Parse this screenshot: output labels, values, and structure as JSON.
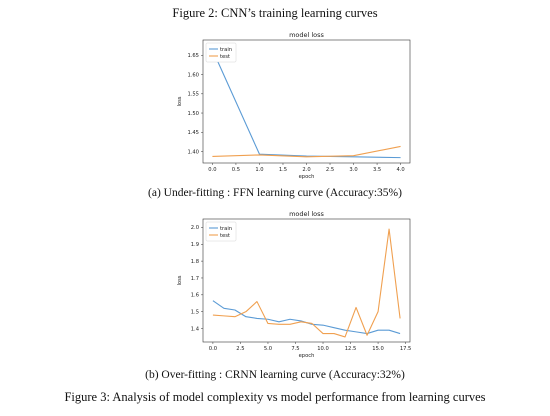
{
  "figure2_caption": "Figure 2: CNN’s training learning curves",
  "subfigure_a_caption": "(a) Under-fitting : FFN learning curve (Accuracy:35%)",
  "subfigure_b_caption": "(b) Over-fitting : CRNN learning curve (Accuracy:32%)",
  "figure3_caption": "Figure 3: Analysis of model complexity vs model performance from learning curves",
  "colors": {
    "train": "#5b9bd5",
    "test": "#f0a050"
  },
  "chart_data": [
    {
      "type": "line",
      "title": "model loss",
      "xlabel": "epoch",
      "ylabel": "loss",
      "xlim": [
        -0.2,
        4.2
      ],
      "ylim": [
        1.37,
        1.69
      ],
      "xticks": [
        "0.0",
        "0.5",
        "1.0",
        "1.5",
        "2.0",
        "2.5",
        "3.0",
        "3.5",
        "4.0"
      ],
      "yticks": [
        "1.40",
        "1.45",
        "1.50",
        "1.55",
        "1.60",
        "1.65"
      ],
      "legend_position": "top-left",
      "series": [
        {
          "name": "train",
          "x": [
            0,
            1,
            2,
            3,
            4
          ],
          "values": [
            1.665,
            1.393,
            1.388,
            1.386,
            1.384
          ]
        },
        {
          "name": "test",
          "x": [
            0,
            1,
            2,
            3,
            4
          ],
          "values": [
            1.387,
            1.391,
            1.386,
            1.389,
            1.413
          ]
        }
      ]
    },
    {
      "type": "line",
      "title": "model loss",
      "xlabel": "epoch",
      "ylabel": "loss",
      "xlim": [
        -0.9,
        17.9
      ],
      "ylim": [
        1.32,
        2.05
      ],
      "xticks": [
        "0.0",
        "2.5",
        "5.0",
        "7.5",
        "10.0",
        "12.5",
        "15.0",
        "17.5"
      ],
      "yticks": [
        "1.4",
        "1.5",
        "1.6",
        "1.7",
        "1.8",
        "1.9",
        "2.0"
      ],
      "legend_position": "top-left",
      "series": [
        {
          "name": "train",
          "x": [
            0,
            1,
            2,
            3,
            4,
            5,
            6,
            7,
            8,
            9,
            10,
            11,
            12,
            13,
            14,
            15,
            16,
            17
          ],
          "values": [
            1.565,
            1.52,
            1.51,
            1.47,
            1.46,
            1.455,
            1.44,
            1.455,
            1.445,
            1.425,
            1.42,
            1.405,
            1.39,
            1.38,
            1.37,
            1.39,
            1.39,
            1.37
          ]
        },
        {
          "name": "test",
          "x": [
            0,
            1,
            2,
            3,
            4,
            5,
            6,
            7,
            8,
            9,
            10,
            11,
            12,
            13,
            14,
            15,
            16,
            17
          ],
          "values": [
            1.48,
            1.475,
            1.47,
            1.5,
            1.56,
            1.43,
            1.425,
            1.425,
            1.44,
            1.43,
            1.37,
            1.37,
            1.35,
            1.525,
            1.36,
            1.5,
            1.99,
            1.46
          ]
        }
      ]
    }
  ]
}
